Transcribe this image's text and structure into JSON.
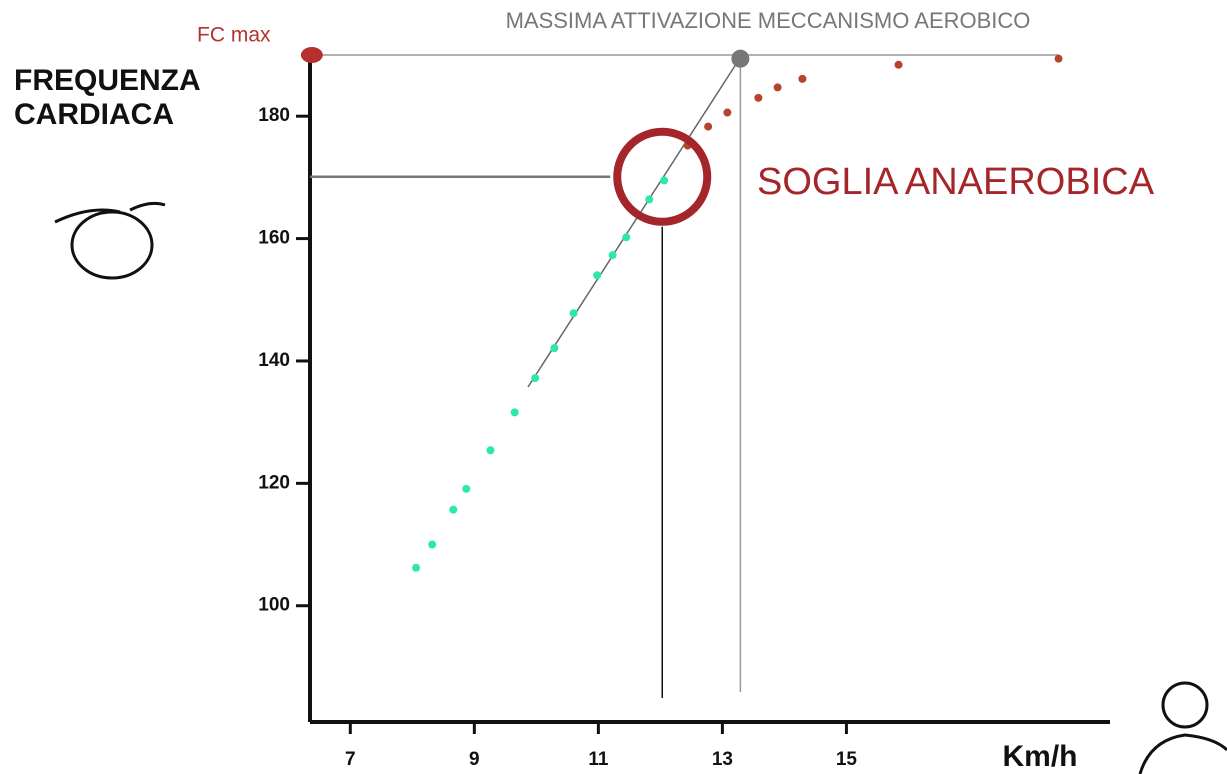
{
  "chart_data": {
    "type": "scatter",
    "y_label": "FREQUENZA CARDIACA",
    "x_label": "Km/h",
    "xlim": [
      6.35,
      19.25
    ],
    "ylim": [
      81,
      190
    ],
    "xticks": [
      7,
      9,
      11,
      13,
      15
    ],
    "yticks": [
      100,
      120,
      140,
      160,
      180
    ],
    "series": [
      {
        "color": "#2ee6b0",
        "x": [
          8.06,
          8.32,
          8.66,
          8.87,
          9.26,
          9.65,
          9.98,
          10.29,
          10.6,
          10.98,
          11.23,
          11.45,
          11.82,
          12.06
        ],
        "y": [
          106.2,
          110,
          115.7,
          119.1,
          125.4,
          131.6,
          137.2,
          142.1,
          147.8,
          154,
          157.3,
          160.2,
          166.4,
          169.5
        ]
      },
      {
        "color": "#b5442a",
        "x": [
          12.44,
          12.77,
          13.08,
          13.58,
          13.89,
          14.29,
          15.84,
          18.42
        ],
        "y": [
          175.2,
          178.3,
          180.6,
          183,
          184.7,
          186.1,
          188.4,
          189.4
        ]
      }
    ],
    "fc_max": {
      "label": "FC max",
      "x": 6.38,
      "y": 190,
      "color": "#b5312f"
    },
    "max_aerobic": {
      "label": "MASSIMA ATTIVAZIONE MECCANISMO AEROBICO",
      "x": 13.29,
      "y": 189.4,
      "color": "#777777"
    },
    "threshold": {
      "label": "SOGLIA ANAEROBICA",
      "x": 12.03,
      "y": 170.1,
      "color": "#a5262a"
    }
  }
}
